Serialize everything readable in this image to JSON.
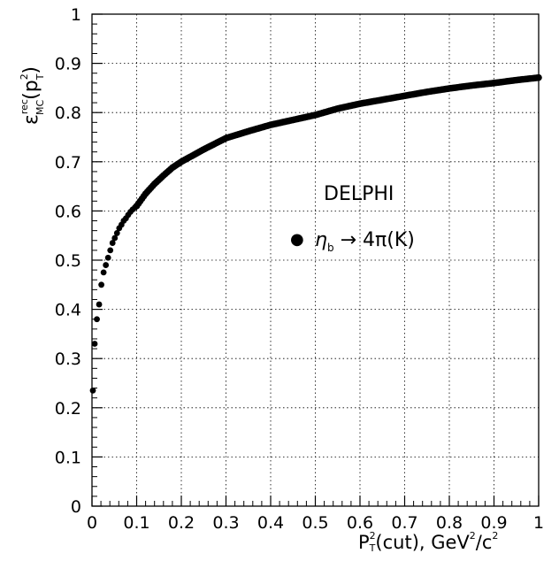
{
  "chart_data": {
    "type": "scatter",
    "grid": true,
    "xlim": [
      0,
      1
    ],
    "ylim": [
      0,
      1
    ],
    "x_ticks": [
      0,
      0.1,
      0.2,
      0.3,
      0.4,
      0.5,
      0.6,
      0.7,
      0.8,
      0.9,
      1
    ],
    "x_tick_labels": [
      "0",
      "0.1",
      "0.2",
      "0.3",
      "0.4",
      "0.5",
      "0.6",
      "0.7",
      "0.8",
      "0.9",
      "1"
    ],
    "y_ticks": [
      0,
      0.1,
      0.2,
      0.3,
      0.4,
      0.5,
      0.6,
      0.7,
      0.8,
      0.9,
      1
    ],
    "y_tick_labels": [
      "0",
      "0.1",
      "0.2",
      "0.3",
      "0.4",
      "0.5",
      "0.6",
      "0.7",
      "0.8",
      "0.9",
      "1"
    ],
    "xlabel": {
      "main": "P",
      "sup": "2",
      "sub": "T",
      "rest": "(cut), GeV",
      "sup2": "2",
      "rest2": "/c",
      "sup3": "2"
    },
    "ylabel": {
      "main": "ε",
      "sup": "rec",
      "sub": "MC",
      "open": "(p",
      "sup2": "2",
      "sub2": "T",
      "close": ")"
    },
    "annotation": "DELPHI",
    "legend": {
      "symbol": "●",
      "label_main": "η",
      "label_sub": "b",
      "label_rest": " → 4π(K)"
    },
    "series": [
      {
        "x": [
          0.002,
          0.006,
          0.011,
          0.016,
          0.021,
          0.026,
          0.031,
          0.036,
          0.041,
          0.046,
          0.051,
          0.056,
          0.061,
          0.066,
          0.071,
          0.076,
          0.081,
          0.086,
          0.091,
          0.096,
          0.1,
          0.12,
          0.14,
          0.16,
          0.18,
          0.2,
          0.25,
          0.3,
          0.35,
          0.4,
          0.45,
          0.5,
          0.55,
          0.6,
          0.65,
          0.7,
          0.75,
          0.8,
          0.85,
          0.9,
          0.95,
          1.0
        ],
        "values": [
          0.235,
          0.33,
          0.38,
          0.41,
          0.45,
          0.475,
          0.49,
          0.505,
          0.52,
          0.535,
          0.545,
          0.555,
          0.565,
          0.572,
          0.58,
          0.585,
          0.592,
          0.598,
          0.603,
          0.607,
          0.61,
          0.635,
          0.655,
          0.672,
          0.688,
          0.7,
          0.725,
          0.748,
          0.762,
          0.775,
          0.785,
          0.795,
          0.808,
          0.818,
          0.826,
          0.834,
          0.842,
          0.849,
          0.855,
          0.86,
          0.866,
          0.871
        ]
      }
    ]
  }
}
